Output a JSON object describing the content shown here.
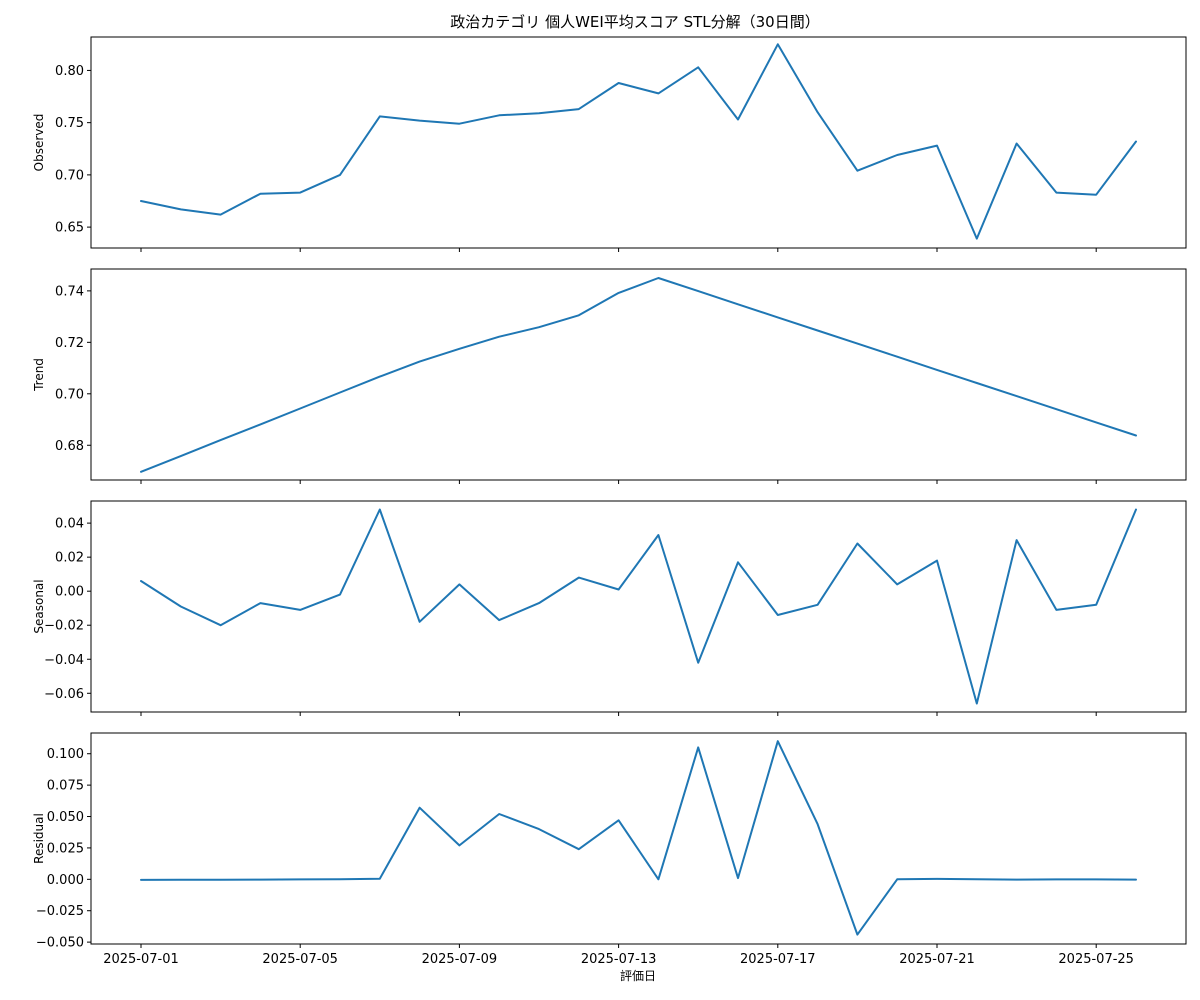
{
  "chart_data": {
    "type": "line",
    "title": "政治カテゴリ 個人WEI平均スコア STL分解（30日間）",
    "xlabel": "評価日",
    "line_color": "#1f77b4",
    "x": [
      "2025-07-01",
      "2025-07-02",
      "2025-07-03",
      "2025-07-04",
      "2025-07-05",
      "2025-07-06",
      "2025-07-07",
      "2025-07-08",
      "2025-07-09",
      "2025-07-10",
      "2025-07-11",
      "2025-07-12",
      "2025-07-13",
      "2025-07-14",
      "2025-07-15",
      "2025-07-16",
      "2025-07-17",
      "2025-07-18",
      "2025-07-19",
      "2025-07-20",
      "2025-07-21",
      "2025-07-22",
      "2025-07-23",
      "2025-07-24",
      "2025-07-25",
      "2025-07-26"
    ],
    "x_ticks": [
      "2025-07-01",
      "2025-07-05",
      "2025-07-09",
      "2025-07-13",
      "2025-07-17",
      "2025-07-21",
      "2025-07-25"
    ],
    "panels": [
      {
        "ylabel": "Observed",
        "ylim": [
          0.63,
          0.832
        ],
        "y_ticks": [
          0.65,
          0.7,
          0.75,
          0.8
        ],
        "y_tick_labels": [
          "0.65",
          "0.70",
          "0.75",
          "0.80"
        ],
        "values": [
          0.675,
          0.667,
          0.662,
          0.682,
          0.683,
          0.7,
          0.756,
          0.752,
          0.749,
          0.757,
          0.759,
          0.763,
          0.788,
          0.778,
          0.803,
          0.753,
          0.825,
          0.76,
          0.704,
          0.719,
          0.728,
          0.639,
          0.73,
          0.683,
          0.681,
          0.732
        ]
      },
      {
        "ylabel": "Trend",
        "ylim": [
          0.6665,
          0.7485
        ],
        "y_ticks": [
          0.68,
          0.7,
          0.72,
          0.74
        ],
        "y_tick_labels": [
          "0.68",
          "0.70",
          "0.72",
          "0.74"
        ],
        "values": [
          0.6697,
          0.6758,
          0.682,
          0.6881,
          0.6943,
          0.7005,
          0.7067,
          0.7125,
          0.7175,
          0.7222,
          0.7259,
          0.7305,
          0.7392,
          0.745,
          0.7399,
          0.7348,
          0.7297,
          0.7246,
          0.7195,
          0.7144,
          0.7093,
          0.7042,
          0.6991,
          0.694,
          0.6889,
          0.6838
        ]
      },
      {
        "ylabel": "Seasonal",
        "ylim": [
          -0.071,
          0.053
        ],
        "y_ticks": [
          -0.06,
          -0.04,
          -0.02,
          0.0,
          0.02,
          0.04
        ],
        "y_tick_labels": [
          "−0.06",
          "−0.04",
          "−0.02",
          "0.00",
          "0.02",
          "0.04"
        ],
        "values": [
          0.006,
          -0.009,
          -0.02,
          -0.007,
          -0.011,
          -0.002,
          0.048,
          -0.018,
          0.004,
          -0.017,
          -0.007,
          0.008,
          0.001,
          0.033,
          -0.042,
          0.017,
          -0.014,
          -0.008,
          0.028,
          0.004,
          0.018,
          -0.066,
          0.03,
          -0.011,
          -0.008,
          0.048
        ]
      },
      {
        "ylabel": "Residual",
        "ylim": [
          -0.0515,
          0.1165
        ],
        "y_ticks": [
          -0.05,
          -0.025,
          0.0,
          0.025,
          0.05,
          0.075,
          0.1
        ],
        "y_tick_labels": [
          "−0.050",
          "−0.025",
          "0.000",
          "0.025",
          "0.050",
          "0.075",
          "0.100"
        ],
        "values": [
          -0.0005,
          -0.0004,
          -0.0003,
          -0.0002,
          -0.0001,
          0.0001,
          0.0005,
          0.057,
          0.027,
          0.052,
          0.04,
          0.024,
          0.047,
          0.0,
          0.105,
          0.001,
          0.11,
          0.044,
          -0.044,
          0.0,
          0.0003,
          0.0,
          -0.0002,
          -0.0001,
          -0.0001,
          -0.0002
        ]
      }
    ]
  }
}
